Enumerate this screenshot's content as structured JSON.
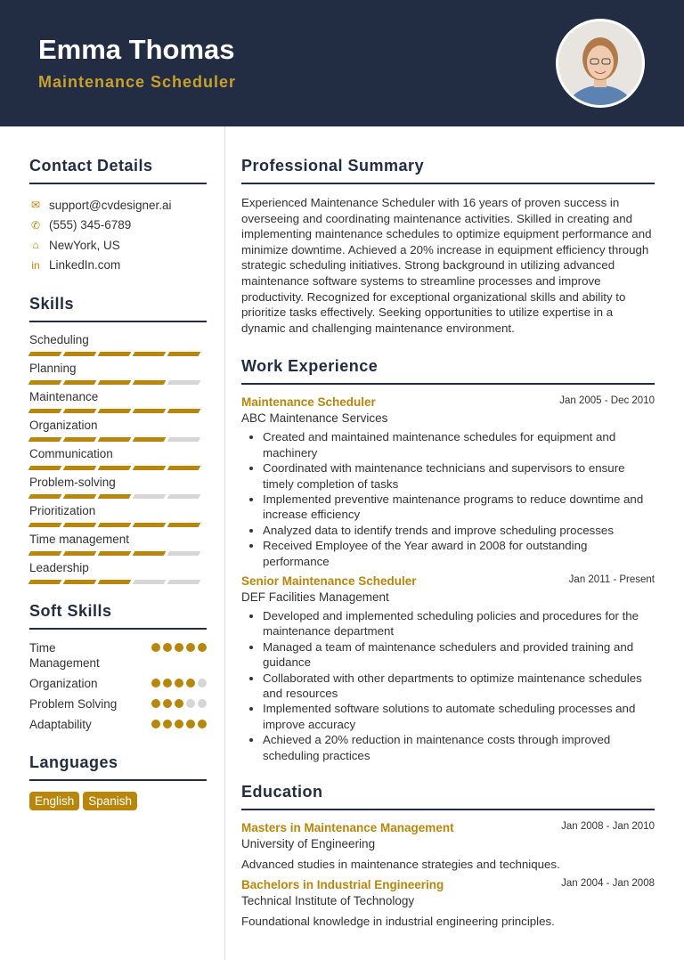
{
  "header": {
    "name": "Emma Thomas",
    "title": "Maintenance Scheduler"
  },
  "colors": {
    "header_bg": "#222c42",
    "accent": "#b8860b"
  },
  "contact": {
    "heading": "Contact Details",
    "items": [
      {
        "icon": "envelope-icon",
        "text": "support@cvdesigner.ai"
      },
      {
        "icon": "phone-icon",
        "text": "(555) 345-6789"
      },
      {
        "icon": "home-icon",
        "text": "NewYork, US"
      },
      {
        "icon": "linkedin-icon",
        "text": "LinkedIn.com"
      }
    ]
  },
  "skills": {
    "heading": "Skills",
    "items": [
      {
        "name": "Scheduling",
        "level": 5
      },
      {
        "name": "Planning",
        "level": 4
      },
      {
        "name": "Maintenance",
        "level": 5
      },
      {
        "name": "Organization",
        "level": 4
      },
      {
        "name": "Communication",
        "level": 5
      },
      {
        "name": "Problem-solving",
        "level": 3
      },
      {
        "name": "Prioritization",
        "level": 5
      },
      {
        "name": "Time management",
        "level": 4
      },
      {
        "name": "Leadership",
        "level": 3
      }
    ]
  },
  "soft_skills": {
    "heading": "Soft Skills",
    "items": [
      {
        "name": "Time Management",
        "level": 5
      },
      {
        "name": "Organization",
        "level": 4
      },
      {
        "name": "Problem Solving",
        "level": 3
      },
      {
        "name": "Adaptability",
        "level": 5
      }
    ]
  },
  "languages": {
    "heading": "Languages",
    "items": [
      "English",
      "Spanish"
    ]
  },
  "summary": {
    "heading": "Professional Summary",
    "text": "Experienced Maintenance Scheduler with 16 years of proven success in overseeing and coordinating maintenance activities. Skilled in creating and implementing maintenance schedules to optimize equipment performance and minimize downtime. Achieved a 20% increase in equipment efficiency through strategic scheduling initiatives. Strong background in utilizing advanced maintenance software systems to streamline processes and improve productivity. Recognized for exceptional organizational skills and ability to prioritize tasks effectively. Seeking opportunities to utilize expertise in a dynamic and challenging maintenance environment."
  },
  "experience": {
    "heading": "Work Experience",
    "jobs": [
      {
        "title": "Maintenance Scheduler",
        "dates": "Jan 2005 - Dec 2010",
        "company": "ABC Maintenance Services",
        "bullets": [
          "Created and maintained maintenance schedules for equipment and machinery",
          "Coordinated with maintenance technicians and supervisors to ensure timely completion of tasks",
          "Implemented preventive maintenance programs to reduce downtime and increase efficiency",
          "Analyzed data to identify trends and improve scheduling processes",
          "Received Employee of the Year award in 2008 for outstanding performance"
        ]
      },
      {
        "title": "Senior Maintenance Scheduler",
        "dates": "Jan 2011 - Present",
        "company": "DEF Facilities Management",
        "bullets": [
          "Developed and implemented scheduling policies and procedures for the maintenance department",
          "Managed a team of maintenance schedulers and provided training and guidance",
          "Collaborated with other departments to optimize maintenance schedules and resources",
          "Implemented software solutions to automate scheduling processes and improve accuracy",
          "Achieved a 20% reduction in maintenance costs through improved scheduling practices"
        ]
      }
    ]
  },
  "education": {
    "heading": "Education",
    "items": [
      {
        "degree": "Masters in Maintenance Management",
        "dates": "Jan 2008 - Jan 2010",
        "school": "University of Engineering",
        "desc": "Advanced studies in maintenance strategies and techniques."
      },
      {
        "degree": "Bachelors in Industrial Engineering",
        "dates": "Jan 2004 - Jan 2008",
        "school": "Technical Institute of Technology",
        "desc": "Foundational knowledge in industrial engineering principles."
      }
    ]
  }
}
